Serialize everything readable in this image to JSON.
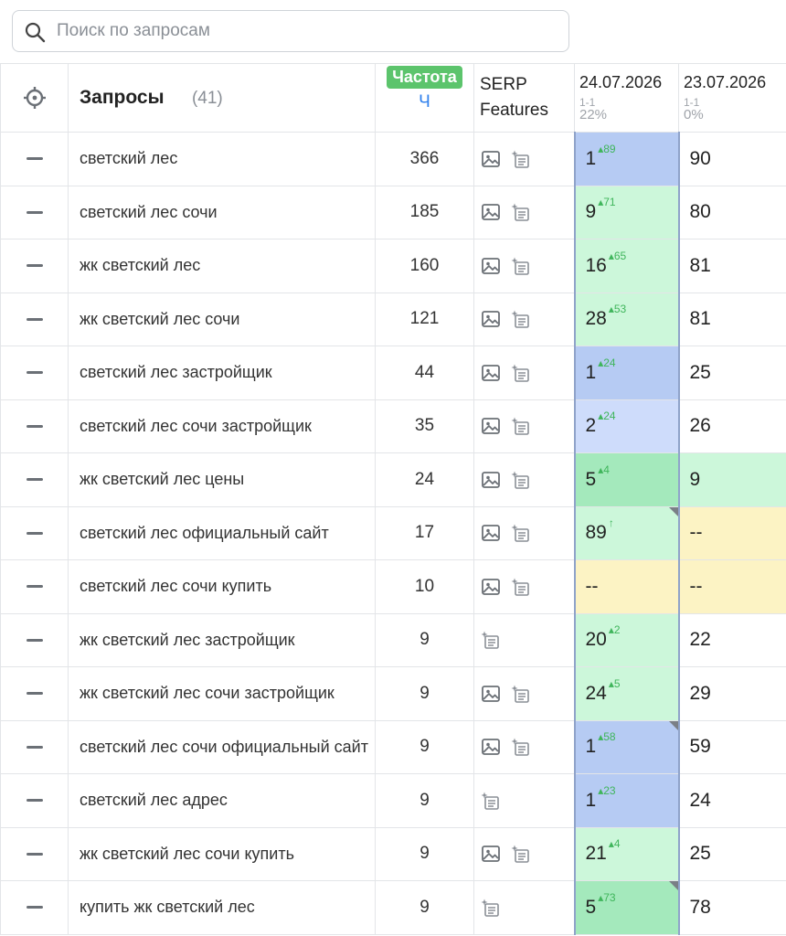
{
  "search": {
    "placeholder": "Поиск по запросам"
  },
  "header": {
    "title": "Запросы",
    "count": "(41)",
    "freq_badge": "Частота",
    "freq_sub": "Ч",
    "serp_line1": "SERP",
    "serp_line2": "Features",
    "dates": [
      {
        "date": "24.07.2026",
        "range": "1-1",
        "pct": "22%"
      },
      {
        "date": "23.07.2026",
        "range": "1-1",
        "pct": "0%"
      }
    ]
  },
  "colors": {
    "blue": "#b6cbf3",
    "light_blue": "#cedcfb",
    "green": "#a4e9bc",
    "light_green": "#ccf7da",
    "yellow": "#fcf3c4",
    "badge_green": "#5cc46c",
    "link_blue": "#2f80ed"
  },
  "icons": {
    "header_select": "crosshair-icon",
    "row_select": "minus-icon",
    "serp_image": "image-icon",
    "serp_feature": "sitelinks-icon",
    "search": "search-icon"
  },
  "rows": [
    {
      "query": "светский лес",
      "freq": "366",
      "img": true,
      "d1": "1",
      "d1_chg": "▴89",
      "d1_bg": "blue",
      "d1_corner": false,
      "d2": "90",
      "d2_bg": "white"
    },
    {
      "query": "светский лес сочи",
      "freq": "185",
      "img": true,
      "d1": "9",
      "d1_chg": "▴71",
      "d1_bg": "light_green",
      "d1_corner": false,
      "d2": "80",
      "d2_bg": "white"
    },
    {
      "query": "жк светский лес",
      "freq": "160",
      "img": true,
      "d1": "16",
      "d1_chg": "▴65",
      "d1_bg": "light_green",
      "d1_corner": false,
      "d2": "81",
      "d2_bg": "white"
    },
    {
      "query": "жк светский лес сочи",
      "freq": "121",
      "img": true,
      "d1": "28",
      "d1_chg": "▴53",
      "d1_bg": "light_green",
      "d1_corner": false,
      "d2": "81",
      "d2_bg": "white"
    },
    {
      "query": "светский лес застройщик",
      "freq": "44",
      "img": true,
      "d1": "1",
      "d1_chg": "▴24",
      "d1_bg": "blue",
      "d1_corner": false,
      "d2": "25",
      "d2_bg": "white"
    },
    {
      "query": "светский лес сочи застройщик",
      "freq": "35",
      "img": true,
      "d1": "2",
      "d1_chg": "▴24",
      "d1_bg": "light_blue",
      "d1_corner": false,
      "d2": "26",
      "d2_bg": "white"
    },
    {
      "query": "жк светский лес цены",
      "freq": "24",
      "img": true,
      "d1": "5",
      "d1_chg": "▴4",
      "d1_bg": "green",
      "d1_corner": false,
      "d2": "9",
      "d2_bg": "light_green"
    },
    {
      "query": "светский лес официальный сайт",
      "freq": "17",
      "img": true,
      "d1": "89",
      "d1_chg": "↑",
      "d1_bg": "light_green",
      "d1_corner": true,
      "d2": "--",
      "d2_bg": "yellow"
    },
    {
      "query": "светский лес сочи купить",
      "freq": "10",
      "img": true,
      "d1": "--",
      "d1_chg": "",
      "d1_bg": "yellow",
      "d1_corner": false,
      "d2": "--",
      "d2_bg": "yellow"
    },
    {
      "query": "жк светский лес застройщик",
      "freq": "9",
      "img": false,
      "d1": "20",
      "d1_chg": "▴2",
      "d1_bg": "light_green",
      "d1_corner": false,
      "d2": "22",
      "d2_bg": "white"
    },
    {
      "query": "жк светский лес сочи застройщик",
      "freq": "9",
      "img": true,
      "d1": "24",
      "d1_chg": "▴5",
      "d1_bg": "light_green",
      "d1_corner": false,
      "d2": "29",
      "d2_bg": "white"
    },
    {
      "query": "светский лес сочи официальный сайт",
      "freq": "9",
      "img": true,
      "d1": "1",
      "d1_chg": "▴58",
      "d1_bg": "blue",
      "d1_corner": true,
      "d2": "59",
      "d2_bg": "white"
    },
    {
      "query": "светский лес адрес",
      "freq": "9",
      "img": false,
      "d1": "1",
      "d1_chg": "▴23",
      "d1_bg": "blue",
      "d1_corner": false,
      "d2": "24",
      "d2_bg": "white"
    },
    {
      "query": "жк светский лес сочи купить",
      "freq": "9",
      "img": true,
      "d1": "21",
      "d1_chg": "▴4",
      "d1_bg": "light_green",
      "d1_corner": false,
      "d2": "25",
      "d2_bg": "white"
    },
    {
      "query": "купить жк светский лес",
      "freq": "9",
      "img": false,
      "d1": "5",
      "d1_chg": "▴73",
      "d1_bg": "green",
      "d1_corner": true,
      "d2": "78",
      "d2_bg": "white"
    }
  ]
}
